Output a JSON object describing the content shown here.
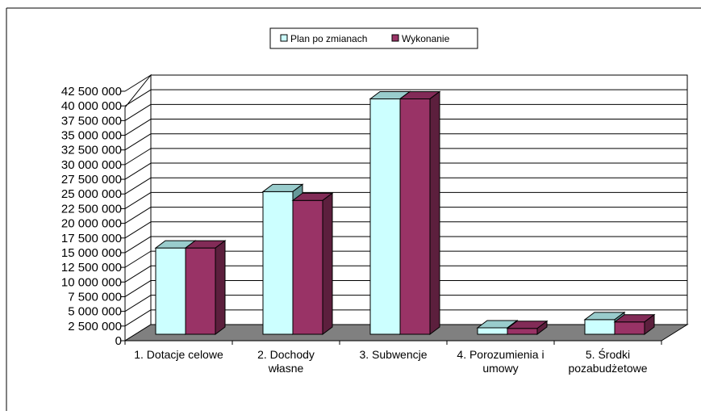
{
  "chart_data": {
    "type": "bar",
    "title": "",
    "xlabel": "",
    "ylabel": "",
    "categories": [
      [
        "1. Dotacje celowe"
      ],
      [
        "2. Dochody",
        "własne"
      ],
      [
        "3. Subwencje"
      ],
      [
        "4. Porozumienia i",
        "umowy"
      ],
      [
        "5. Środki",
        "pozabudżetowe"
      ]
    ],
    "series": [
      {
        "name": "Plan po zmianach",
        "color": "#CCFFFF",
        "values": [
          14700000,
          24300000,
          40100000,
          1100000,
          2500000
        ]
      },
      {
        "name": "Wykonanie",
        "color": "#993366",
        "values": [
          14700000,
          22800000,
          40100000,
          1000000,
          2100000
        ]
      }
    ],
    "ylim": [
      0,
      42500000
    ],
    "yticks": [
      "0",
      "2 500 000",
      "5 000 000",
      "7 500 000",
      "10 000 000",
      "12 500 000",
      "15 000 000",
      "17 500 000",
      "20 000 000",
      "22 500 000",
      "25 000 000",
      "27 500 000",
      "30 000 000",
      "32 500 000",
      "35 000 000",
      "37 500 000",
      "40 000 000",
      "42 500 000"
    ],
    "grid": true,
    "legend_position": "top-center",
    "floor_color": "#808080"
  }
}
